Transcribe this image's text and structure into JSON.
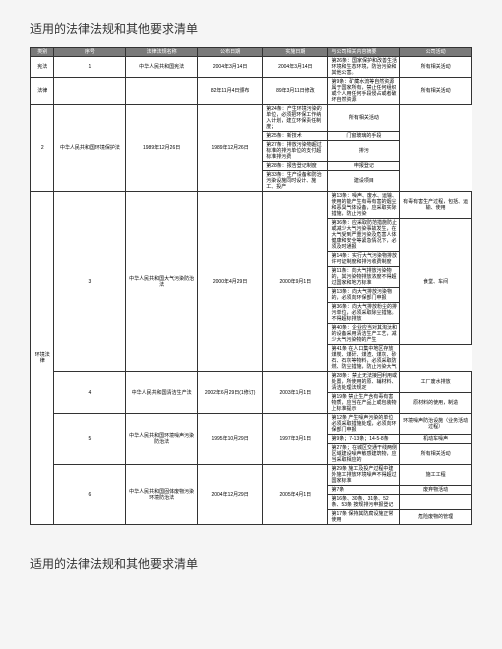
{
  "title": "适用的法律法规和其他要求清单",
  "table": {
    "headers": [
      "类别",
      "序号",
      "法律法规名称",
      "公布日期",
      "实施日期",
      "与公司相关内容摘要",
      "公司活动"
    ],
    "rows": [
      {
        "category": "宪法",
        "categoryRowspan": 1,
        "seq": "1",
        "name": "中华人民共和国宪法",
        "pubdate": "2004年3月14日",
        "effdate": "2004年3月14日",
        "contents": [
          {
            "text": "第26条：国家保护和改善生活环境和生态环境，防治污染和其他公害。",
            "activity": "所有相关活动"
          }
        ]
      },
      {
        "category": "法律",
        "categoryRowspan": 0,
        "seq": "",
        "name": "",
        "pubdate": "82年11月4日颁布",
        "effdate": "89年3月11日修改",
        "contents": [
          {
            "text": "第9条：矿藏水流等自然资源属于国家所有，禁止任何组织或个人用任何手段侵占或者破坏自然资源",
            "activity": "所有相关活动"
          }
        ]
      },
      {
        "category": "",
        "seq": "2",
        "name": "中华人民共和国环境保护法",
        "pubdate": "1989年12月26日",
        "effdate": "1989年12月26日",
        "contents": [
          {
            "text": "第24条：产生环境污染的单位，必须把环保工作纳入计划，建立环保责任制度；",
            "activity": "所有相关活动"
          },
          {
            "text": "第25条：新技术",
            "activity": "门窗玻璃的手段"
          },
          {
            "text": "第27条：排放污染物超过标准的排污单位的支付超标准排污费",
            "activity": "排污"
          },
          {
            "text": "第28条：报告登记制度",
            "activity": "申报登记"
          },
          {
            "text": "第33条：生产设备和防治污染设施同时设计、施工、投产",
            "activity": "建设项目"
          }
        ]
      },
      {
        "category": "环境法律",
        "categoryRowspan": 18,
        "seq": "3",
        "name": "中华人民共和国大气污染防治法",
        "pubdate": "2000年4月29日",
        "effdate": "2000年9月1日",
        "contents": [
          {
            "text": "第13条：噪声、废水、运输、使用的能产生有毒有害的烟尘和恶臭气体设备，应采取实际措施，防止污染",
            "activity": "有毒有害生产过程，包括、运输、使用"
          },
          {
            "text": "第36条：应采取防范措施防止或减少大气污染事故发生，在大气受到严重污染及危害人体健康和安全等紧急情况下，必须及时通报",
            "activity": "食堂、车间",
            "activityRowspan": 6
          },
          {
            "text": "第14条：实行大气污染物排放许可证制度和排污收费制度"
          },
          {
            "text": "第11条：向大气排放污染物的，其污染物排放浓度不得超过国家和地方标准"
          },
          {
            "text": "第13条：向大气排放污染物的，必须向环保部门申报"
          },
          {
            "text": "第36条：向大气排放粉尘的排污单位，必须采取除尘措施。不得超标排放"
          },
          {
            "text": "第40条：企业应当对其淘汰和的设备采用清洁生产工艺，减少大气污染物的产生"
          },
          {
            "text": "第41条  在人口集中地区存放煤炭、煤矸、煤渣、煤灰、砂石、石灰等物料，必须采取防燃、防尘措施，防止污染大气"
          }
        ]
      },
      {
        "category": "",
        "seq": "4",
        "name": "中华人民共和国清洁生产法",
        "pubdate": "2002年6月29日(1修订)",
        "effdate": "2003年1月1日",
        "contents": [
          {
            "text": "第28条：禁止无法接回利用或处置，所使用的原、辅材料、清洁处理法规定",
            "activity": "工厂废水排放"
          },
          {
            "text": "第19条  禁止生产含有毒有害物质，应当在产品上或包装物上标准提示",
            "activity": "原材料的使用，制造"
          }
        ]
      },
      {
        "category": "",
        "seq": "5",
        "name": "中华人民共和国环境噪声污染防治法",
        "pubdate": "1995年10月29日",
        "effdate": "1997年3月1日",
        "contents": [
          {
            "text": "第12条  产生噪声污染的单位必须采取措施处理，必须向环保部门申报",
            "activity": "环境噪声防治设施（业务活动过程）"
          },
          {
            "text": "第9条；7-13条；14-5-8条",
            "activity": "机动车噪声"
          },
          {
            "text": "第27条；在城区交通干线两侧区域建设噪声敏感建筑物，应当采取相应的",
            "activity": "所有相关活动"
          }
        ]
      },
      {
        "category": "",
        "seq": "6",
        "name": "中华人民共和国固体废物污染环境防治法",
        "pubdate": "2004年12月29日",
        "effdate": "2005年4月1日",
        "contents": [
          {
            "text": "第29条 施工及投产过程中建外施工排放环境噪声不得超过国家标准",
            "activity": "施工工程"
          },
          {
            "text": "第7条",
            "activity": "废弃物活动"
          },
          {
            "text": "第16条、30条、31条、52条、53条  按规排污申报登记",
            "activity": ""
          },
          {
            "text": "第17条  保持其防腐设施正常使用",
            "activity": "危险废物的管理"
          }
        ]
      }
    ]
  }
}
